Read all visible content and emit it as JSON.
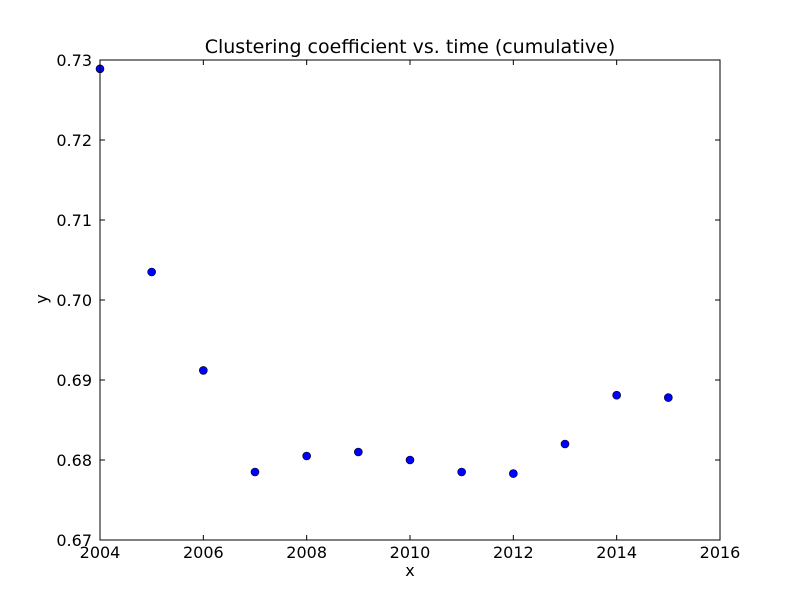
{
  "chart_data": {
    "type": "scatter",
    "title": "Clustering coefficient vs. time (cumulative)",
    "xlabel": "x",
    "ylabel": "y",
    "xlim": [
      2004,
      2016
    ],
    "ylim": [
      0.67,
      0.73
    ],
    "x_ticks": [
      "2004",
      "2006",
      "2008",
      "2010",
      "2012",
      "2014",
      "2016"
    ],
    "y_ticks": [
      "0.67",
      "0.68",
      "0.69",
      "0.70",
      "0.71",
      "0.72",
      "0.73"
    ],
    "grid": false,
    "marker_color": "#0000ff",
    "series": [
      {
        "x": [
          2004,
          2005,
          2006,
          2007,
          2008,
          2009,
          2010,
          2011,
          2012,
          2013,
          2014,
          2015
        ],
        "y": [
          0.7289,
          0.7035,
          0.6912,
          0.6785,
          0.6805,
          0.681,
          0.68,
          0.6785,
          0.6783,
          0.682,
          0.6881,
          0.6878
        ]
      }
    ]
  }
}
